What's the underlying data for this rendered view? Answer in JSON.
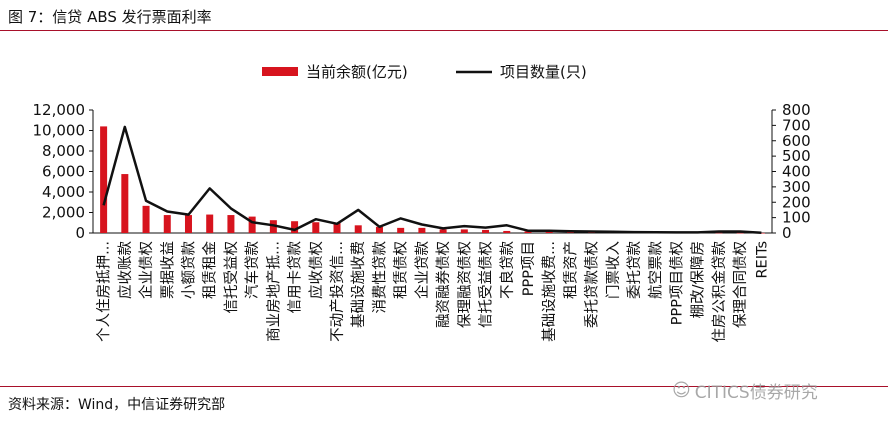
{
  "figure": {
    "title": "图 7：信贷 ABS 发行票面利率",
    "source": "资料来源：Wind，中信证券研究部",
    "watermark": "CITICS债券研究"
  },
  "colors": {
    "bar": "#d7141e",
    "line": "#111111",
    "rule": "#a8102a"
  },
  "chart_data": {
    "type": "bar",
    "combo": "bar-line-dual-axis",
    "categories": [
      "个人住房抵押...",
      "应收账款",
      "企业债权",
      "票据收益",
      "小额贷款",
      "租赁租金",
      "信托受益权",
      "汽车贷款",
      "商业房地产抵...",
      "信用卡贷款",
      "应收债权",
      "不动产投资信...",
      "基础设施收费",
      "消费性贷款",
      "租赁债权",
      "企业贷款",
      "融资融券债权",
      "保理融资债权",
      "信托受益债权",
      "不良贷款",
      "PPP项目",
      "基础设施收费...",
      "租赁资产",
      "委托贷款债权",
      "门票收入",
      "委托贷款",
      "航空票款",
      "PPP项目债权",
      "棚改/保障房",
      "住房公积金贷款",
      "保理合同债权",
      "REITs"
    ],
    "series": [
      {
        "name": "当前余额(亿元)",
        "type": "bar",
        "axis": "left",
        "values": [
          10400,
          5750,
          2650,
          1750,
          1750,
          1800,
          1750,
          1600,
          1250,
          1150,
          1050,
          1000,
          750,
          600,
          500,
          500,
          350,
          350,
          300,
          200,
          150,
          130,
          120,
          100,
          80,
          70,
          60,
          50,
          40,
          30,
          20,
          10
        ]
      },
      {
        "name": "项目数量(只)",
        "type": "line",
        "axis": "right",
        "values": [
          180,
          690,
          210,
          140,
          120,
          290,
          160,
          70,
          50,
          20,
          90,
          60,
          150,
          40,
          95,
          55,
          30,
          45,
          35,
          50,
          15,
          15,
          12,
          10,
          8,
          6,
          5,
          4,
          4,
          10,
          10,
          2
        ]
      }
    ],
    "y_left": {
      "min": 0,
      "max": 12000,
      "ticks": [
        "0",
        "2,000",
        "4,000",
        "6,000",
        "8,000",
        "10,000",
        "12,000"
      ]
    },
    "y_right": {
      "min": 0,
      "max": 800,
      "ticks": [
        "0",
        "100",
        "200",
        "300",
        "400",
        "500",
        "600",
        "700",
        "800"
      ]
    },
    "legend": [
      "当前余额(亿元)",
      "项目数量(只)"
    ],
    "legend_position": "top",
    "grid": false
  }
}
